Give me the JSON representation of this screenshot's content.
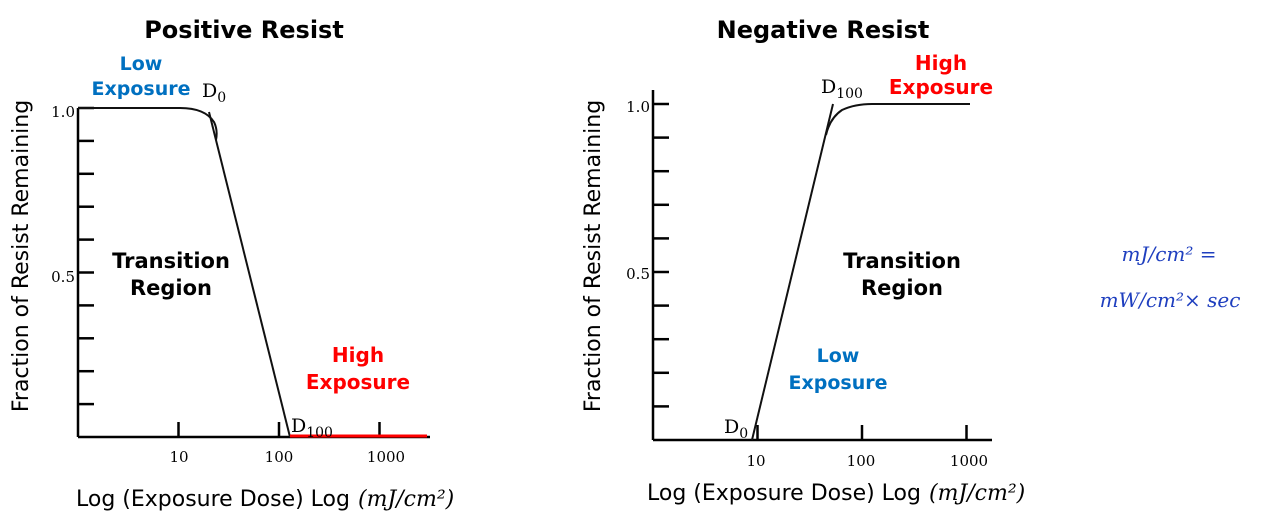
{
  "chart_data": [
    {
      "type": "line",
      "title": "Positive Resist",
      "xlabel": "Log (Exposure Dose) Log",
      "xunit": "(mJ/cm²)",
      "ylabel": "Fraction of Resist Remaining",
      "xscale": "log",
      "xlim": [
        1,
        2000
      ],
      "ylim": [
        0,
        1.0
      ],
      "x_ticks": [
        10,
        100,
        1000
      ],
      "x_tick_labels": [
        "10",
        "100",
        "1000"
      ],
      "y_tick_labels": [
        "1.0",
        "0.5"
      ],
      "y_tick_values": [
        1.0,
        0.5
      ],
      "series": [
        {
          "name": "remaining",
          "x": [
            1,
            18,
            22,
            130
          ],
          "y": [
            1.0,
            1.0,
            0.92,
            0.0
          ]
        },
        {
          "name": "high-exposure",
          "x": [
            130,
            2000
          ],
          "y": [
            0.0,
            0.0
          ],
          "color": "#ff0000"
        }
      ],
      "annotations": {
        "d0": "D",
        "d0_sub": "0",
        "d100": "D",
        "d100_sub": "100",
        "low_1": "Low",
        "low_2": "Exposure",
        "transition_1": "Transition",
        "transition_2": "Region",
        "high_1": "High",
        "high_2": "Exposure"
      }
    },
    {
      "type": "line",
      "title": "Negative Resist",
      "xlabel": "Log (Exposure Dose) Log",
      "xunit": "(mJ/cm²)",
      "ylabel": "Fraction of Resist Remaining",
      "xscale": "log",
      "xlim": [
        1,
        2000
      ],
      "ylim": [
        0,
        1.0
      ],
      "x_ticks": [
        10,
        100,
        1000
      ],
      "x_tick_labels": [
        "10",
        "100",
        "1000"
      ],
      "y_tick_labels": [
        "1.0",
        "0.5"
      ],
      "y_tick_values": [
        1.0,
        0.5
      ],
      "series": [
        {
          "name": "remaining",
          "x": [
            10,
            50,
            60,
            80,
            1300
          ],
          "y": [
            0.0,
            0.92,
            0.99,
            1.0,
            1.0
          ]
        }
      ],
      "annotations": {
        "d0": "D",
        "d0_sub": "0",
        "d100": "D",
        "d100_sub": "100",
        "low_1": "Low",
        "low_2": "Exposure",
        "transition_1": "Transition",
        "transition_2": "Region",
        "high_1": "High",
        "high_2": "Exposure"
      }
    }
  ],
  "formula": {
    "line1": "mJ/cm² =",
    "line2": "mW/cm²× sec"
  }
}
